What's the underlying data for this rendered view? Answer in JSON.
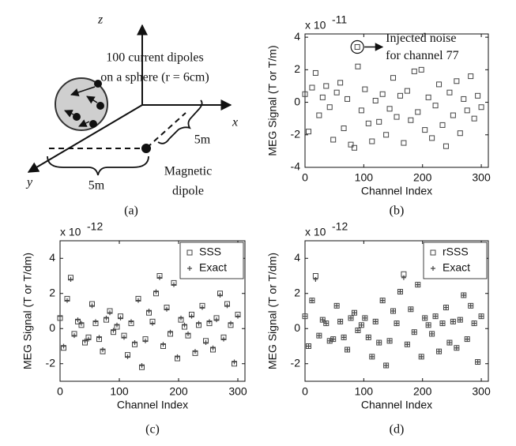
{
  "diagram": {
    "z_label": "z",
    "x_label": "x",
    "y_label": "y",
    "dipoles_line1": "100 current dipoles",
    "dipoles_line2": "on a sphere (r = 6cm)",
    "distance_x": "5m",
    "distance_y": "5m",
    "magnetic_line1": "Magnetic",
    "magnetic_line2": "dipole",
    "caption": "(a)"
  },
  "chart_data": [
    {
      "type": "scatter",
      "caption": "(b)",
      "x_label": "Channel Index",
      "y_label": "MEG Signal (T or T/m)",
      "y_exponent": {
        "base": "x 10",
        "power": "-11"
      },
      "xlim": [
        0,
        312
      ],
      "xticks": [
        0,
        100,
        200,
        300
      ],
      "ylim": [
        -4,
        4.2
      ],
      "yticks": [
        -4,
        -2,
        0,
        2,
        4
      ],
      "x": [
        0,
        6,
        12,
        18,
        24,
        30,
        36,
        42,
        48,
        54,
        60,
        66,
        72,
        78,
        84,
        90,
        96,
        102,
        108,
        114,
        120,
        126,
        132,
        138,
        144,
        150,
        156,
        162,
        168,
        174,
        180,
        186,
        192,
        198,
        204,
        210,
        216,
        222,
        228,
        234,
        240,
        246,
        252,
        258,
        264,
        270,
        276,
        282,
        288,
        294,
        300
      ],
      "series": [
        {
          "color": "#444444",
          "marker": "square",
          "values": [
            0.5,
            -1.8,
            0.9,
            1.8,
            -0.8,
            0.3,
            1.0,
            -0.3,
            -2.3,
            0.6,
            1.2,
            -1.6,
            0.2,
            -2.6,
            -2.8,
            2.2,
            -0.5,
            0.8,
            -1.3,
            -2.4,
            0.1,
            -1.2,
            0.5,
            -2.0,
            -0.4,
            1.5,
            -0.9,
            0.4,
            -2.5,
            0.7,
            -1.1,
            1.9,
            -0.6,
            2.0,
            -1.7,
            0.3,
            -2.2,
            -0.2,
            1.1,
            -1.4,
            -2.7,
            0.6,
            -0.8,
            1.3,
            -1.9,
            0.2,
            -0.5,
            1.6,
            -1.0,
            0.4,
            -0.3
          ]
        }
      ],
      "annotation": {
        "text": [
          "Injected noise",
          "for channel 77"
        ],
        "x": 89,
        "y": 3.4
      }
    },
    {
      "type": "scatter",
      "caption": "(c)",
      "x_label": "Channel Index",
      "y_label": "MEG Signal (T or T/dm)",
      "y_exponent": {
        "base": "x 10",
        "power": "-12"
      },
      "xlim": [
        0,
        312
      ],
      "xticks": [
        0,
        100,
        200,
        300
      ],
      "ylim": [
        -3,
        5
      ],
      "yticks": [
        -2,
        0,
        2,
        4
      ],
      "legend": "upper right",
      "x": [
        0,
        6,
        12,
        18,
        24,
        30,
        36,
        42,
        48,
        54,
        60,
        66,
        72,
        78,
        84,
        90,
        96,
        102,
        108,
        114,
        120,
        126,
        132,
        138,
        144,
        150,
        156,
        162,
        168,
        174,
        180,
        186,
        192,
        198,
        204,
        210,
        216,
        222,
        228,
        234,
        240,
        246,
        252,
        258,
        264,
        270,
        276,
        282,
        288,
        294,
        300
      ],
      "series": [
        {
          "name": "SSS",
          "color": "#444444",
          "marker": "square",
          "values": [
            0.6,
            -1.1,
            1.7,
            2.9,
            -0.3,
            0.4,
            0.2,
            -0.8,
            -0.5,
            1.4,
            0.3,
            -0.6,
            -1.3,
            0.5,
            1.0,
            -0.2,
            0.1,
            0.7,
            -0.4,
            -1.5,
            0.3,
            -0.9,
            1.7,
            -2.2,
            -0.6,
            0.9,
            0.4,
            2.0,
            3.0,
            -1.0,
            1.2,
            -0.3,
            2.6,
            -1.7,
            0.5,
            0.1,
            -0.4,
            0.8,
            -1.4,
            0.2,
            1.3,
            -0.7,
            0.3,
            -1.2,
            0.6,
            2.0,
            -0.5,
            1.4,
            0.2,
            -2.0,
            0.8
          ]
        },
        {
          "name": "Exact",
          "color": "#444444",
          "marker": "plus",
          "values": [
            0.7,
            -1.0,
            1.6,
            2.8,
            -0.4,
            0.5,
            0.3,
            -0.7,
            -0.6,
            1.3,
            0.4,
            -0.5,
            -1.2,
            0.6,
            0.9,
            -0.1,
            0.2,
            0.6,
            -0.5,
            -1.6,
            0.4,
            -0.8,
            1.6,
            -2.1,
            -0.7,
            1.0,
            0.3,
            2.1,
            2.9,
            -0.9,
            1.1,
            -0.2,
            2.5,
            -1.6,
            0.6,
            0.2,
            -0.3,
            0.7,
            -1.3,
            0.3,
            1.2,
            -0.8,
            0.4,
            -1.1,
            0.5,
            1.9,
            -0.6,
            1.3,
            0.3,
            -1.9,
            0.7
          ]
        }
      ]
    },
    {
      "type": "scatter",
      "caption": "(d)",
      "x_label": "Channel Index",
      "y_label": "MEG Signal (T or T/dm)",
      "y_exponent": {
        "base": "x 10",
        "power": "-12"
      },
      "xlim": [
        0,
        312
      ],
      "xticks": [
        0,
        100,
        200,
        300
      ],
      "ylim": [
        -3,
        5
      ],
      "yticks": [
        -2,
        0,
        2,
        4
      ],
      "legend": "upper right",
      "x": [
        0,
        6,
        12,
        18,
        24,
        30,
        36,
        42,
        48,
        54,
        60,
        66,
        72,
        78,
        84,
        90,
        96,
        102,
        108,
        114,
        120,
        126,
        132,
        138,
        144,
        150,
        156,
        162,
        168,
        174,
        180,
        186,
        192,
        198,
        204,
        210,
        216,
        222,
        228,
        234,
        240,
        246,
        252,
        258,
        264,
        270,
        276,
        282,
        288,
        294,
        300
      ],
      "series": [
        {
          "name": "rSSS",
          "color": "#444444",
          "marker": "square",
          "values": [
            0.7,
            -1.0,
            1.6,
            3.0,
            -0.4,
            0.5,
            0.3,
            -0.7,
            -0.6,
            1.3,
            0.4,
            -0.5,
            -1.2,
            0.6,
            0.9,
            -0.1,
            0.2,
            0.6,
            -0.5,
            -1.6,
            0.4,
            -0.8,
            1.6,
            -2.1,
            -0.7,
            1.0,
            0.3,
            2.1,
            3.1,
            -0.9,
            1.1,
            -0.2,
            2.5,
            -1.6,
            0.6,
            0.2,
            -0.3,
            0.7,
            -1.3,
            0.3,
            1.2,
            -0.8,
            0.4,
            -1.1,
            0.5,
            1.9,
            -0.6,
            1.3,
            0.3,
            -1.9,
            0.7
          ]
        },
        {
          "name": "Exact",
          "color": "#444444",
          "marker": "plus",
          "values": [
            0.7,
            -1.0,
            1.6,
            2.8,
            -0.4,
            0.5,
            0.3,
            -0.7,
            -0.6,
            1.3,
            0.4,
            -0.5,
            -1.2,
            0.6,
            0.9,
            -0.1,
            0.2,
            0.6,
            -0.5,
            -1.6,
            0.4,
            -0.8,
            1.6,
            -2.1,
            -0.7,
            1.0,
            0.3,
            2.1,
            2.9,
            -0.9,
            1.1,
            -0.2,
            2.5,
            -1.6,
            0.6,
            0.2,
            -0.3,
            0.7,
            -1.3,
            0.3,
            1.2,
            -0.8,
            0.4,
            -1.1,
            0.5,
            1.9,
            -0.6,
            1.3,
            0.3,
            -1.9,
            0.7
          ]
        }
      ]
    }
  ]
}
